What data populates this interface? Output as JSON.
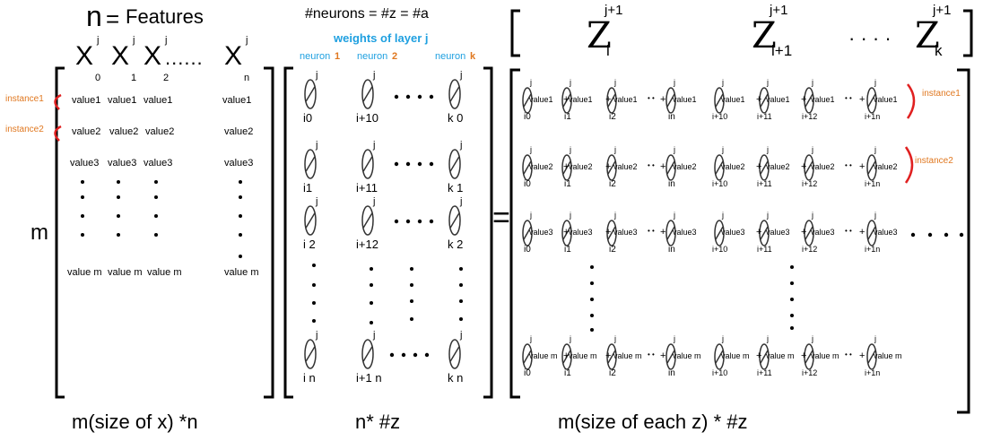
{
  "x_matrix": {
    "n_label": "n",
    "equals": "=",
    "features_label": "Features",
    "m_label": "m",
    "columns": [
      {
        "var": "X",
        "sup": "j",
        "sub": "0"
      },
      {
        "var": "X",
        "sup": "j",
        "sub": "1"
      },
      {
        "var": "X",
        "sup": "j",
        "sub": "2"
      },
      {
        "var": "X",
        "sup": "j",
        "sub": "n"
      }
    ],
    "ellipsis": "......",
    "rows": [
      [
        "value1",
        "value1",
        "value1",
        "value1"
      ],
      [
        "value2",
        "value2",
        "value2",
        "value2"
      ],
      [
        "value3",
        "value3",
        "value3",
        "value3"
      ],
      [
        "value m",
        "value m",
        "value m",
        "value m"
      ]
    ],
    "instance_labels": [
      "instance1",
      "instance2"
    ],
    "caption": "m(size of x) *n"
  },
  "weights": {
    "header": "#neurons = #z = #a",
    "subtitle": "weights of layer j",
    "neuron_word": "neuron",
    "neuron_nums": [
      "1",
      "2",
      "k"
    ],
    "sup": "j",
    "rows": [
      [
        "i0",
        "i+10",
        "k 0"
      ],
      [
        "i1",
        "i+11",
        "k 1"
      ],
      [
        "i 2",
        "i+12",
        "k 2"
      ],
      [
        "i n",
        "i+1 n",
        "k n"
      ]
    ],
    "caption": "n* #z"
  },
  "equals": "=",
  "z_row": {
    "items": [
      {
        "var": "Z",
        "sup": "j+1",
        "sub": "i"
      },
      {
        "var": "Z",
        "sup": "j+1",
        "sub": "i+1"
      },
      {
        "var": "Z",
        "sup": "j+1",
        "sub": "k"
      }
    ],
    "dots": "· · · ·"
  },
  "result": {
    "sup": "j",
    "row_values": [
      "value1",
      "value2",
      "value3",
      "value m"
    ],
    "left_subs": [
      "i0",
      "i1",
      "i2",
      "in"
    ],
    "right_subs": [
      "i+10",
      "i+11",
      "i+12",
      "i+1n"
    ],
    "plus": "+",
    "dots": "• •",
    "instance_labels": [
      "instance1",
      "instance2"
    ],
    "caption": "m(size of each z) * #z"
  }
}
